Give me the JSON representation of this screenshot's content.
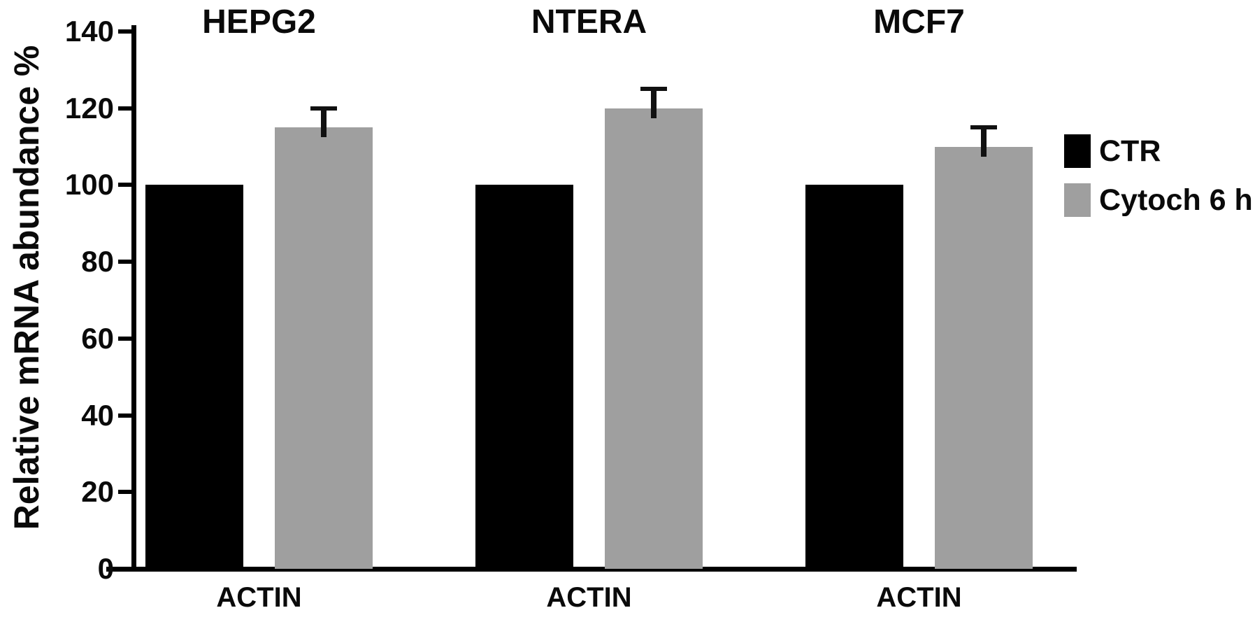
{
  "figure": {
    "background": "#ffffff",
    "text_color": "#0a0a0a",
    "axis_color": "#000000"
  },
  "chart_data": {
    "type": "bar",
    "title": "",
    "xlabel": "",
    "ylabel": "Relative mRNA abundance %",
    "ylim": [
      0,
      140
    ],
    "yticks": [
      0,
      20,
      40,
      60,
      80,
      100,
      120,
      140
    ],
    "grid": false,
    "legend_position": "right",
    "group_titles": [
      "HEPG2",
      "NTERA",
      "MCF7"
    ],
    "group_xlabels": [
      "ACTIN",
      "ACTIN",
      "ACTIN"
    ],
    "series": [
      {
        "name": "CTR",
        "color": "#000000",
        "values": [
          100,
          100,
          100
        ],
        "errors": [
          0,
          0,
          0
        ]
      },
      {
        "name": "Cytoch 6 h",
        "color": "#9f9f9f",
        "values": [
          115,
          120,
          110
        ],
        "errors": [
          5,
          5,
          5
        ]
      }
    ],
    "error_bar_color": "#111111"
  }
}
